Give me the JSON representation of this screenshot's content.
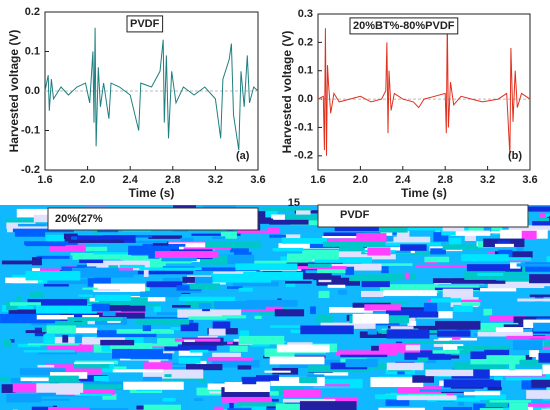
{
  "chart_data": [
    {
      "type": "line",
      "legend_label": "PVDF",
      "annotation": "(a)",
      "xlabel": "Time (s)",
      "ylabel": "Harvested voltage (V)",
      "color": "#1f7f80",
      "xlim": [
        1.6,
        3.6
      ],
      "xticks": [
        1.6,
        {
          "value": 2.0,
          "label": "2.0"
        },
        2.4,
        2.8,
        3.2,
        3.6
      ],
      "ylim": [
        -0.2,
        0.2
      ],
      "yticks": [
        -0.2,
        -0.1,
        {
          "value": 0,
          "label": "0.0"
        },
        0.1,
        0.2
      ],
      "x": [
        1.6,
        1.63,
        1.64,
        1.66,
        1.68,
        1.75,
        1.82,
        1.9,
        1.98,
        2.02,
        2.05,
        2.06,
        2.07,
        2.08,
        2.1,
        2.12,
        2.15,
        2.2,
        2.22,
        2.3,
        2.4,
        2.48,
        2.5,
        2.6,
        2.68,
        2.71,
        2.72,
        2.74,
        2.76,
        2.79,
        2.83,
        2.9,
        3.0,
        3.1,
        3.2,
        3.25,
        3.27,
        3.33,
        3.35,
        3.37,
        3.42,
        3.44,
        3.47,
        3.5,
        3.52,
        3.56,
        3.6
      ],
      "values": [
        0,
        0.04,
        -0.05,
        0.03,
        -0.02,
        0.01,
        -0.01,
        0.01,
        0.02,
        -0.03,
        0.1,
        -0.08,
        0.16,
        -0.14,
        0.06,
        -0.04,
        0.02,
        -0.07,
        0.02,
        0.01,
        -0.01,
        -0.1,
        0.02,
        0.01,
        0.05,
        0.13,
        -0.08,
        0.09,
        -0.12,
        0.05,
        -0.03,
        0.01,
        -0.01,
        0.01,
        -0.02,
        -0.12,
        0.03,
        0.08,
        0.12,
        -0.06,
        -0.15,
        0.05,
        -0.04,
        0.09,
        -0.03,
        0.01,
        0
      ]
    },
    {
      "type": "line",
      "legend_label": "20%BT%-80%PVDF",
      "annotation": "(b)",
      "xlabel": "Time (s)",
      "ylabel": "Harvested voltage (V)",
      "color": "#e0301e",
      "xlim": [
        1.6,
        3.6
      ],
      "xticks": [
        1.6,
        {
          "value": 2.0,
          "label": "2.0"
        },
        2.4,
        2.8,
        3.2,
        3.6
      ],
      "ylim": [
        -0.25,
        0.3
      ],
      "yticks": [
        -0.2,
        -0.1,
        {
          "value": 0,
          "label": "0.0"
        },
        0.1,
        0.2,
        0.3
      ],
      "x": [
        1.6,
        1.65,
        1.66,
        1.67,
        1.68,
        1.69,
        1.7,
        1.72,
        1.75,
        1.8,
        1.9,
        2.0,
        2.1,
        2.2,
        2.24,
        2.25,
        2.26,
        2.27,
        2.29,
        2.32,
        2.4,
        2.5,
        2.55,
        2.6,
        2.7,
        2.8,
        2.81,
        2.82,
        2.83,
        2.85,
        2.88,
        2.95,
        3.05,
        3.15,
        3.3,
        3.38,
        3.41,
        3.42,
        3.44,
        3.46,
        3.48,
        3.52,
        3.6
      ],
      "values": [
        0,
        0.01,
        -0.18,
        0.25,
        -0.2,
        0.12,
        0.05,
        -0.05,
        0.02,
        -0.01,
        0,
        0.01,
        -0.01,
        0,
        0.03,
        0.2,
        -0.12,
        0.1,
        -0.04,
        0.02,
        0,
        -0.01,
        -0.03,
        0,
        0.01,
        0.02,
        -0.12,
        0.28,
        -0.1,
        0.06,
        -0.02,
        0.01,
        0,
        -0.01,
        0,
        0.02,
        -0.2,
        0.18,
        -0.08,
        0.1,
        -0.03,
        0.02,
        0
      ]
    }
  ],
  "fragments": {
    "left_label": "20%(27%",
    "right_tick": "15",
    "right_label": "PVDF"
  }
}
